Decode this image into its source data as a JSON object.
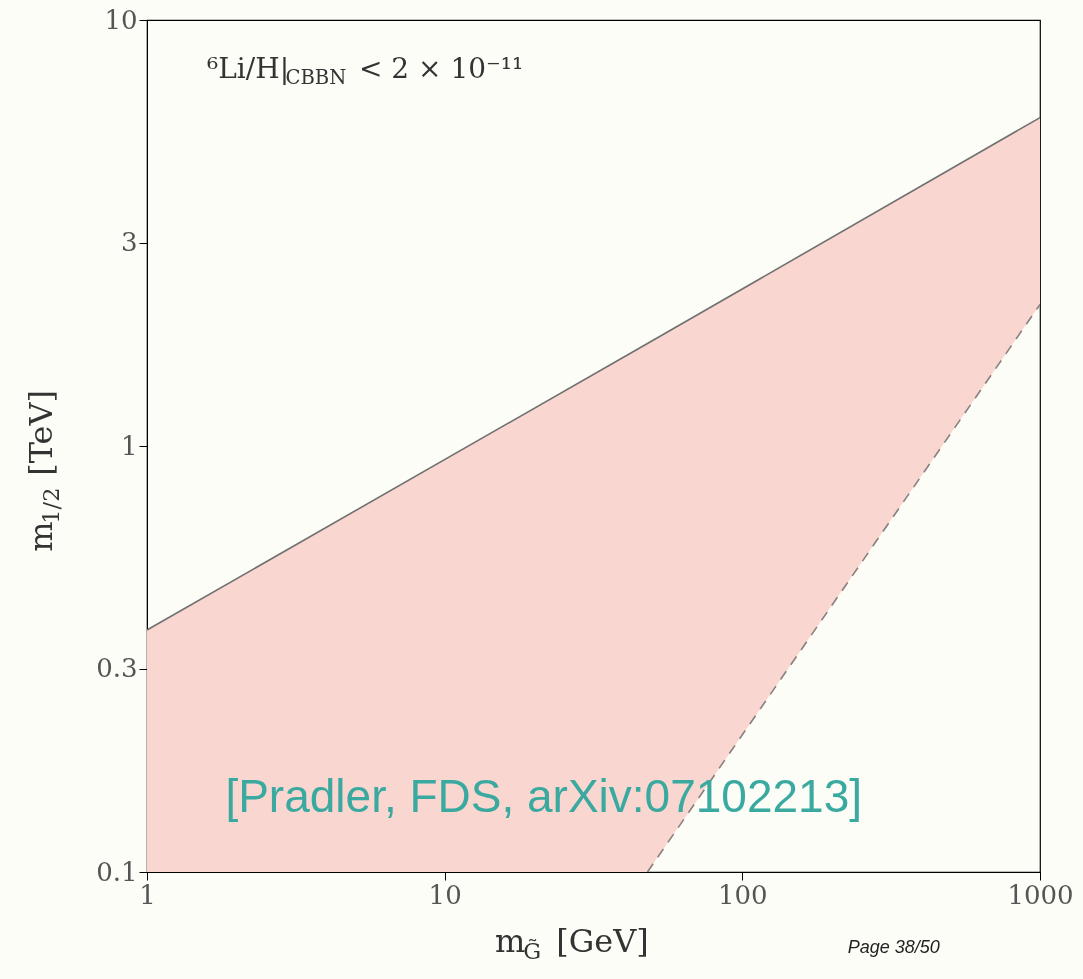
{
  "chart_data": {
    "type": "line",
    "xlabel": "m$_{G̃}$ [GeV]",
    "ylabel": "m$_{1/2}$ [TeV]",
    "log": "xy",
    "xlim": [
      1,
      1000
    ],
    "xticks": [
      1,
      10,
      100,
      1000
    ],
    "ylim": [
      0.1,
      10
    ],
    "yticks": [
      0.1,
      0.3,
      1,
      3,
      10
    ],
    "grid": false,
    "series": [
      {
        "color": "#707070",
        "line_style": "solid",
        "x": [
          1,
          48,
          1000
        ],
        "values": [
          0.37,
          1.74,
          5.9
        ],
        "lower": [
          0.1,
          0.1,
          2.15
        ],
        "upper": [
          0.37,
          1.74,
          5.9
        ],
        "colors": [
          "#f9d6d0",
          "#f9d6d0",
          "#f9d6d0"
        ]
      },
      {
        "color": "#8a7f7c",
        "line_style": "dashed",
        "x": [
          48,
          1000
        ],
        "values": [
          0.1,
          2.15
        ]
      }
    ],
    "annotations": [
      "⁶Li/H|$_{CBBN}$ < 2 × 10⁻¹¹",
      "[Pradler, FDS, arXiv:07102213]",
      "Page 38/50"
    ]
  }
}
